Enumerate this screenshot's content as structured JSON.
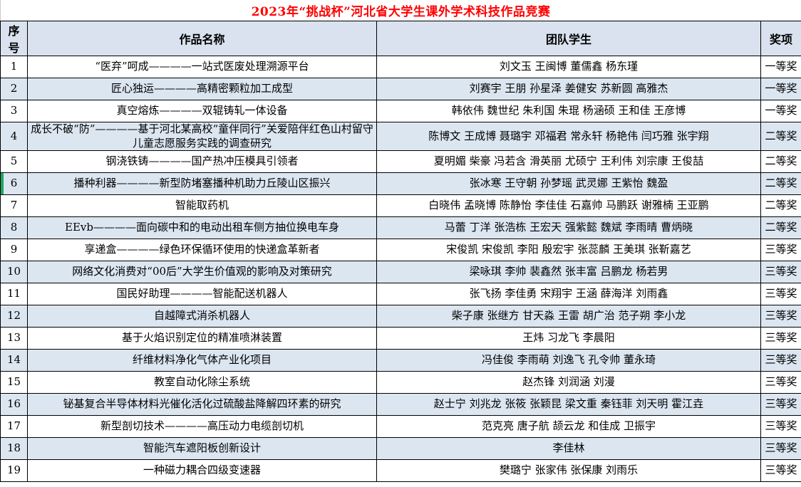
{
  "title": "2023年“挑战杯”河北省大学生课外学术科技作品竞赛",
  "colors": {
    "title": "#ff0000",
    "border": "#000000",
    "header_bg": "#d9e2ee",
    "band_row_bg": "#dce6f1",
    "selection": "#21a366"
  },
  "markers": {
    "selected_row": 6
  },
  "table": {
    "headers": [
      "序号",
      "作品名称",
      "团队学生",
      "奖项"
    ],
    "rows": [
      {
        "no": "1",
        "work": "“医弃”呵成————一站式医废处理溯源平台",
        "students": "刘文玉  王闽博  董儒鑫  杨东瑾",
        "award": "一等奖"
      },
      {
        "no": "2",
        "work": "匠心独运————高精密颗粒加工成型",
        "students": "刘赛宇  王朋  孙星泽  姜健安  苏新圆  高雅杰",
        "award": "一等奖"
      },
      {
        "no": "3",
        "work": "真空熔炼————双辊铸轧一体设备",
        "students": "韩依伟 魏世纪 朱利国 朱琨 杨涵硕 王和佳 王彦博",
        "award": "一等奖"
      },
      {
        "no": "4",
        "work": "成长不破“防”————基于河北某高校“童伴同行”关爱陪伴红色山村留守儿童志愿服务实践的调查研究",
        "students": "陈博文 王成博 聂璐宇 邓福君 常永轩 杨艳伟 闫巧雅 张宇翔",
        "award": "二等奖"
      },
      {
        "no": "5",
        "work": "钢浇铁铸————国产热冲压模具引领者",
        "students": "夏明媚 柴豪 冯若含 滑英丽 尤硕宁 王利伟 刘宗康 王俊喆",
        "award": "二等奖"
      },
      {
        "no": "6",
        "work": "播种利器————新型防堵塞播种机助力丘陵山区振兴",
        "students": "张冰寒  王守朝  孙梦瑶  武灵娜  王紫怡  魏盈",
        "award": "二等奖"
      },
      {
        "no": "7",
        "work": "智能取药机",
        "students": "白晓伟 孟晓博 陈静怡 李佳佳 石嘉帅 马鹏跃 谢雅楠 王亚鹏",
        "award": "二等奖"
      },
      {
        "no": "8",
        "work": "EEvb————面向碳中和的电动出租车侧方抽位换电车身",
        "students": "马蕾 丁洋 张浩栋  王宏天  强紫懿  魏斌  李雨晴  曹炳晓",
        "award": "二等奖"
      },
      {
        "no": "9",
        "work": "享递盒————绿色环保循环使用的快递盒革新者",
        "students": "宋俊凯 宋俊凯 李阳 殷宏宇 张蕊麟 王美琪 张靳嘉艺",
        "award": "三等奖"
      },
      {
        "no": "10",
        "work": "网络文化消费对“00后”大学生价值观的影响及对策研究",
        "students": "梁咏琪  李帅  裴鑫然  张丰富  吕鹏龙  杨若男",
        "award": "三等奖"
      },
      {
        "no": "11",
        "work": "国民好助理————智能配送机器人",
        "students": "张飞扬  李佳勇  宋翔宇  王涵  薛海洋  刘雨鑫",
        "award": "三等奖"
      },
      {
        "no": "12",
        "work": "自越障式消杀机器人",
        "students": "柴子康 张继方 甘天淼 王雷 胡广治 范子朔 李小龙",
        "award": "三等奖"
      },
      {
        "no": "13",
        "work": "基于火焰识别定位的精准喷淋装置",
        "students": "王炜  习龙飞  李晨阳",
        "award": "三等奖"
      },
      {
        "no": "14",
        "work": "纤维材料净化气体产业化项目",
        "students": "冯佳俊 李雨萌 刘逸飞 孔令帅 董永琦",
        "award": "三等奖"
      },
      {
        "no": "15",
        "work": "教室自动化除尘系统",
        "students": "赵杰锋  刘润涵  刘漫",
        "award": "三等奖"
      },
      {
        "no": "16",
        "work": "铋基复合半导体材料光催化活化过硫酸盐降解四环素的研究",
        "students": "赵士宁 刘兆龙 张筱 张颖昆 梁文重 秦钰菲 刘天明 霍江垚",
        "award": "三等奖"
      },
      {
        "no": "17",
        "work": "新型剖切技术————高压动力电缆剖切机",
        "students": "范克亮  唐子航  颉云龙  和佳成  卫振宇",
        "award": "三等奖"
      },
      {
        "no": "18",
        "work": "智能汽车遮阳板创新设计",
        "students": "李佳林",
        "award": "三等奖"
      },
      {
        "no": "19",
        "work": "一种磁力耦合四级变速器",
        "students": "樊璐宁  张家伟  张保康  刘雨乐",
        "award": "三等奖"
      }
    ]
  }
}
